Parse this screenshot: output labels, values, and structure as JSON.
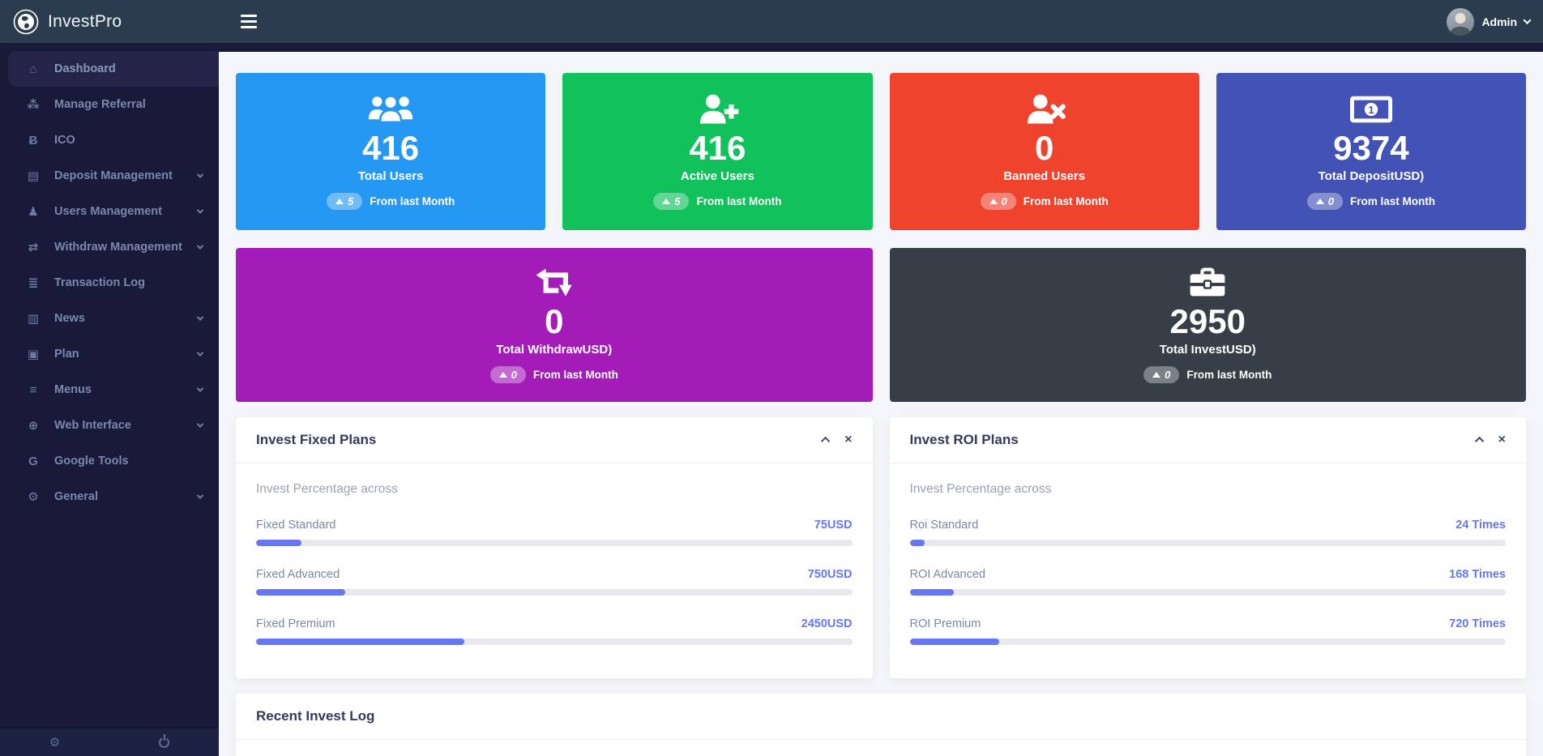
{
  "topbar": {
    "brand": "InvestPro",
    "user_name": "Admin"
  },
  "sidebar": {
    "items": [
      {
        "label": "Dashboard",
        "icon": "home-icon",
        "glyph": "⌂"
      },
      {
        "label": "Manage Referral",
        "icon": "sitemap-icon",
        "glyph": "⁂"
      },
      {
        "label": "ICO",
        "icon": "bitcoin-icon",
        "glyph": "Ƀ"
      },
      {
        "label": "Deposit Management",
        "icon": "credit-card-icon",
        "glyph": "▤"
      },
      {
        "label": "Users Management",
        "icon": "users-icon",
        "glyph": "♟"
      },
      {
        "label": "Withdraw Management",
        "icon": "exchange-icon",
        "glyph": "⇄"
      },
      {
        "label": "Transaction Log",
        "icon": "list-icon",
        "glyph": "≣"
      },
      {
        "label": "News",
        "icon": "newspaper-icon",
        "glyph": "▥"
      },
      {
        "label": "Plan",
        "icon": "briefcase-icon",
        "glyph": "▣"
      },
      {
        "label": "Menus",
        "icon": "menu-bars-icon",
        "glyph": "≡"
      },
      {
        "label": "Web Interface",
        "icon": "globe-icon",
        "glyph": "⊕"
      },
      {
        "label": "Google Tools",
        "icon": "google-icon",
        "glyph": "G"
      },
      {
        "label": "General",
        "icon": "gear-icon",
        "glyph": "⚙"
      }
    ],
    "footer": {
      "settings_glyph": "⚙"
    }
  },
  "cards": [
    {
      "icon": "users-icon",
      "value": "416",
      "label": "Total Users",
      "delta": "5",
      "note": "From last Month",
      "color": "#2598f3"
    },
    {
      "icon": "user-plus-icon",
      "value": "416",
      "label": "Active Users",
      "delta": "5",
      "note": "From last Month",
      "color": "#10c15c"
    },
    {
      "icon": "user-x-icon",
      "value": "0",
      "label": "Banned Users",
      "delta": "0",
      "note": "From last Month",
      "color": "#f0432e"
    },
    {
      "icon": "money-bill-icon",
      "value": "9374",
      "label": "Total DepositUSD)",
      "delta": "0",
      "note": "From last Month",
      "color": "#4353b5"
    },
    {
      "icon": "retweet-icon",
      "value": "0",
      "label": "Total WithdrawUSD)",
      "delta": "0",
      "note": "From last Month",
      "color": "#a41cb8"
    },
    {
      "icon": "briefcase-icon",
      "value": "2950",
      "label": "Total InvestUSD)",
      "delta": "0",
      "note": "From last Month",
      "color": "#373e47"
    }
  ],
  "panels": {
    "close_glyph": "×",
    "fixed": {
      "title": "Invest Fixed Plans",
      "subtitle": "Invest Percentage across",
      "rows": [
        {
          "label": "Fixed Standard",
          "value": "75USD",
          "pct": 7.6
        },
        {
          "label": "Fixed Advanced",
          "value": "750USD",
          "pct": 15
        },
        {
          "label": "Fixed Premium",
          "value": "2450USD",
          "pct": 35
        }
      ]
    },
    "roi": {
      "title": "Invest ROI Plans",
      "subtitle": "Invest Percentage across",
      "rows": [
        {
          "label": "Roi Standard",
          "value": "24 Times",
          "pct": 2.5
        },
        {
          "label": "ROI Advanced",
          "value": "168 Times",
          "pct": 7.4
        },
        {
          "label": "ROI Premium",
          "value": "720 Times",
          "pct": 15
        }
      ]
    },
    "recent": {
      "title": "Recent Invest Log"
    }
  },
  "colors": {
    "accent": "#6777ef",
    "topbar": "#2b3c4f",
    "sidebar": "#191a39"
  }
}
